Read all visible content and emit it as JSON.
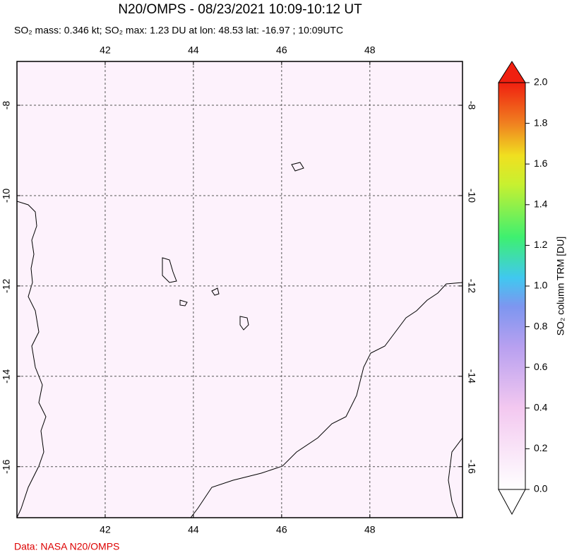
{
  "title": "N20/OMPS - 08/23/2021 10:09-10:12 UT",
  "subtitle": "SO₂ mass: 0.346 kt; SO₂ max: 1.23 DU at lon: 48.53 lat: -16.97 ; 10:09UTC",
  "map": {
    "lonlim": [
      40,
      50.1
    ],
    "latlim": [
      -7.03,
      -17.13
    ],
    "lon_ticks": [
      42,
      44,
      46,
      48
    ],
    "lat_ticks": [
      -8,
      -10,
      -12,
      -14,
      -16
    ]
  },
  "colorbar": {
    "label": "SO₂ column TRM [DU]",
    "range": [
      0,
      2
    ],
    "ticks": [
      {
        "value": 0,
        "label": "0.0"
      },
      {
        "value": 0.2,
        "label": "0.2"
      },
      {
        "value": 0.4,
        "label": "0.4"
      },
      {
        "value": 0.6,
        "label": "0.6"
      },
      {
        "value": 0.8,
        "label": "0.8"
      },
      {
        "value": 1,
        "label": "1.0"
      },
      {
        "value": 1.2,
        "label": "1.2"
      },
      {
        "value": 1.4,
        "label": "1.4"
      },
      {
        "value": 1.6,
        "label": "1.6"
      },
      {
        "value": 1.8,
        "label": "1.8"
      },
      {
        "value": 2,
        "label": "2.0"
      }
    ]
  },
  "credit": "Data: NASA N20/OMPS"
}
